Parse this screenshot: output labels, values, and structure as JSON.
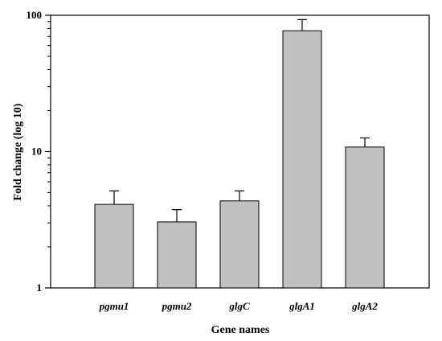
{
  "chart_data": {
    "type": "bar",
    "title": "",
    "xlabel": "Gene names",
    "ylabel": "Fold change (log 10)",
    "y_scale": "log",
    "ylim": [
      1,
      100
    ],
    "y_ticks": [
      "1",
      "10",
      "100"
    ],
    "grid": false,
    "categories": [
      "pgmu1",
      "pgmu2",
      "glgC",
      "glgA1",
      "glgA2"
    ],
    "values": [
      4.1,
      3.05,
      4.35,
      77,
      10.8
    ],
    "error_upper": [
      5.15,
      3.75,
      5.15,
      93,
      12.6
    ],
    "bar_color": "#c0c0c0",
    "edge_color": "#000000"
  }
}
